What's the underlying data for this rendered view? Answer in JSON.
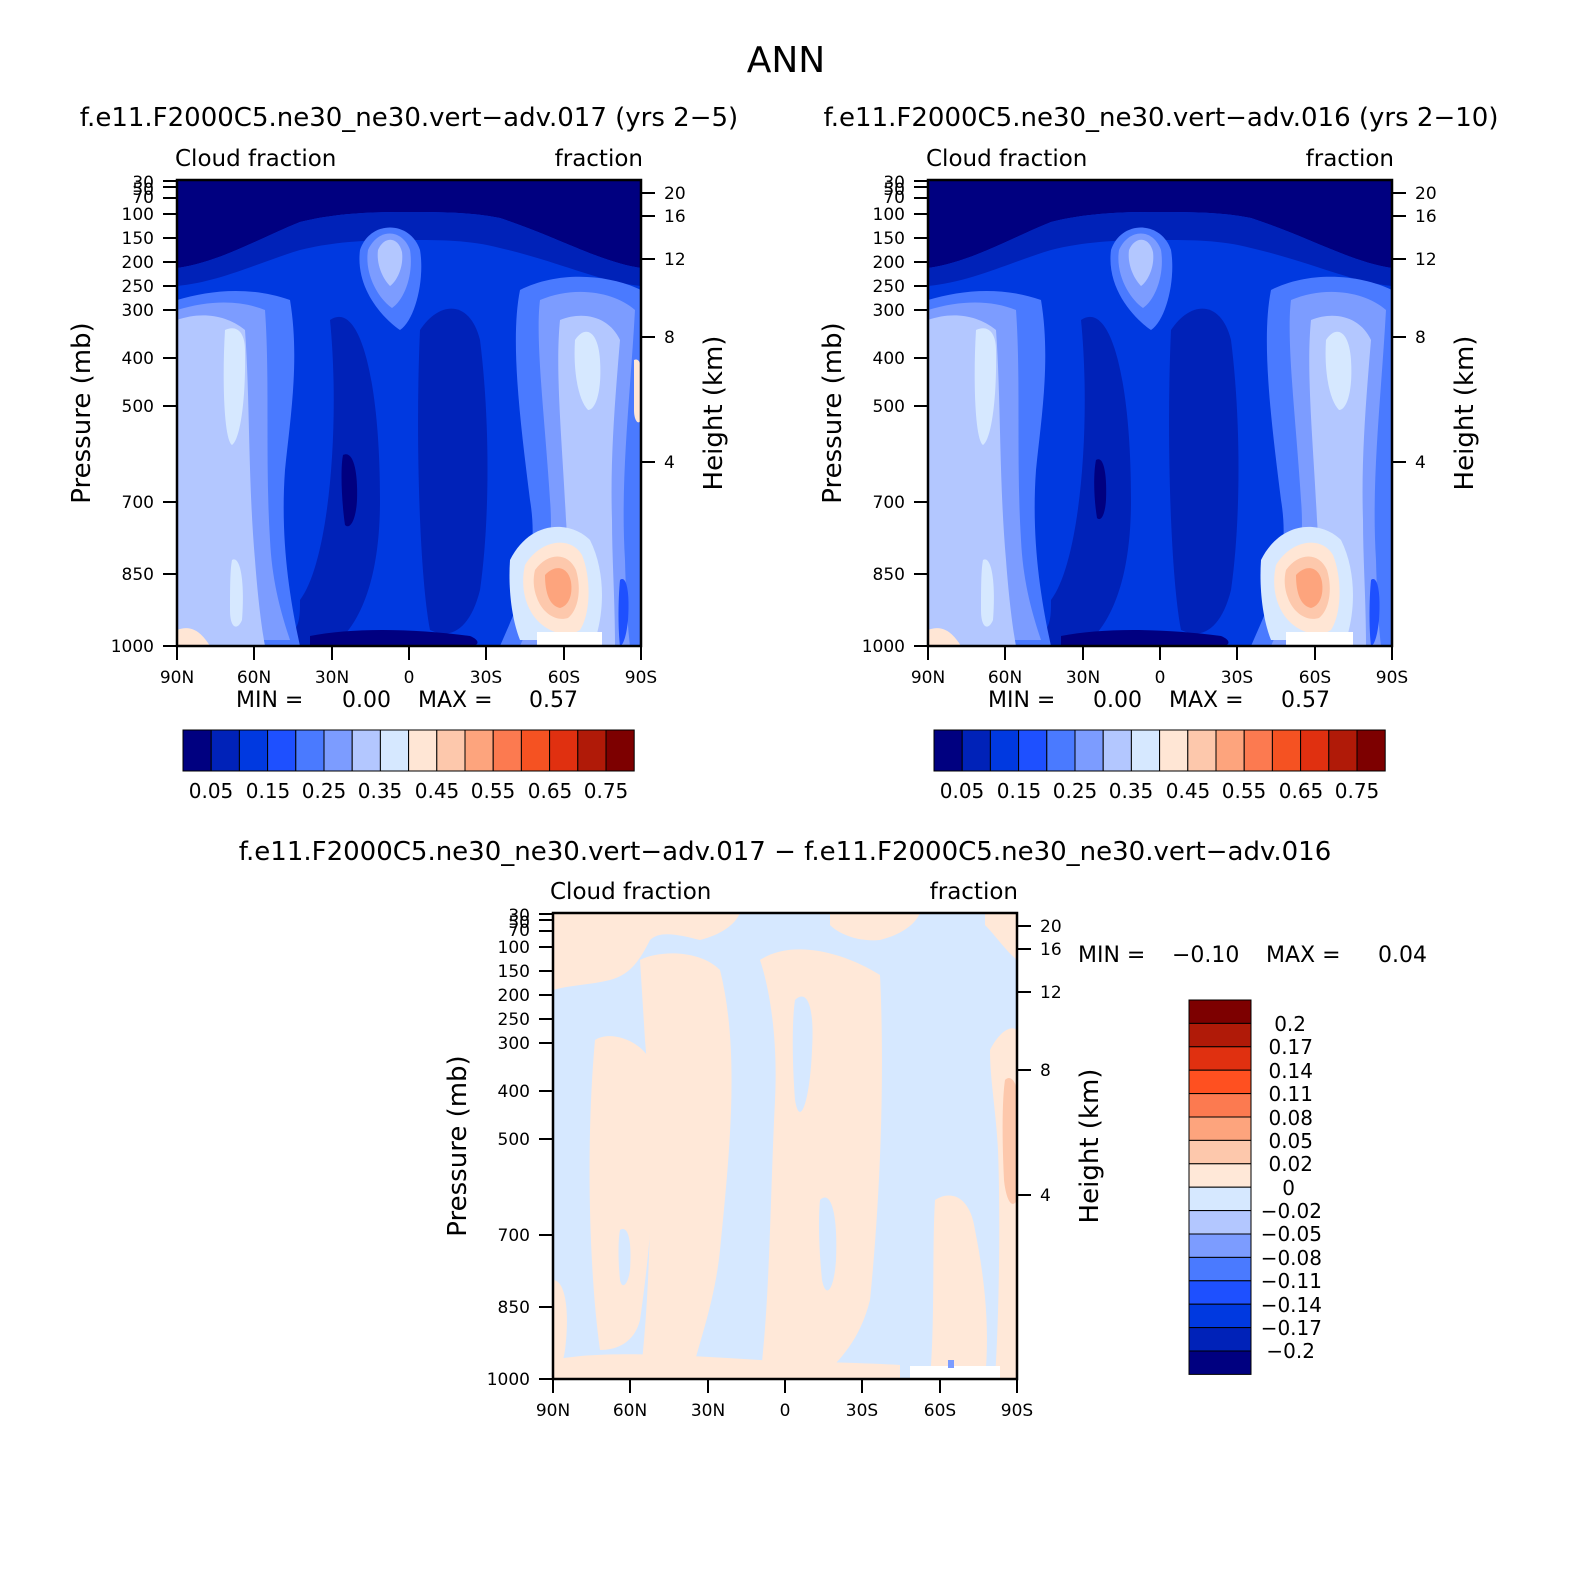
{
  "page_title": "ANN",
  "panels": [
    {
      "title": "f.e11.F2000C5.ne30_ne30.vert−adv.017 (yrs 2−5)",
      "left_label": "Cloud fraction",
      "right_label": "fraction",
      "min_text": "MIN =",
      "min_value": "0.00",
      "max_text": "MAX =",
      "max_value": "0.57",
      "xticks": [
        "90N",
        "60N",
        "30N",
        "0",
        "30S",
        "60S",
        "90S"
      ],
      "y_left_title": "Pressure (mb)",
      "y_left_ticks": [
        "30",
        "50",
        "70",
        "100",
        "150",
        "200",
        "250",
        "300",
        "400",
        "500",
        "700",
        "850",
        "1000"
      ],
      "y_right_title": "Height (km)",
      "y_right_ticks": [
        "20",
        "16",
        "12",
        "8",
        "4"
      ],
      "colorbar_labels": [
        "0.05",
        "0.15",
        "0.25",
        "0.35",
        "0.45",
        "0.55",
        "0.65",
        "0.75"
      ]
    },
    {
      "title": "f.e11.F2000C5.ne30_ne30.vert−adv.016 (yrs 2−10)",
      "left_label": "Cloud fraction",
      "right_label": "fraction",
      "min_text": "MIN =",
      "min_value": "0.00",
      "max_text": "MAX =",
      "max_value": "0.57",
      "xticks": [
        "90N",
        "60N",
        "30N",
        "0",
        "30S",
        "60S",
        "90S"
      ],
      "y_left_title": "Pressure (mb)",
      "y_left_ticks": [
        "30",
        "50",
        "70",
        "100",
        "150",
        "200",
        "250",
        "300",
        "400",
        "500",
        "700",
        "850",
        "1000"
      ],
      "y_right_title": "Height (km)",
      "y_right_ticks": [
        "20",
        "16",
        "12",
        "8",
        "4"
      ],
      "colorbar_labels": [
        "0.05",
        "0.15",
        "0.25",
        "0.35",
        "0.45",
        "0.55",
        "0.65",
        "0.75"
      ]
    },
    {
      "title": "f.e11.F2000C5.ne30_ne30.vert−adv.017 − f.e11.F2000C5.ne30_ne30.vert−adv.016",
      "left_label": "Cloud fraction",
      "right_label": "fraction",
      "min_text": "MIN =",
      "min_value": "−0.10",
      "max_text": "MAX =",
      "max_value": "0.04",
      "xticks": [
        "90N",
        "60N",
        "30N",
        "0",
        "30S",
        "60S",
        "90S"
      ],
      "y_left_title": "Pressure (mb)",
      "y_left_ticks": [
        "30",
        "50",
        "70",
        "100",
        "150",
        "200",
        "250",
        "300",
        "400",
        "500",
        "700",
        "850",
        "1000"
      ],
      "y_right_title": "Height (km)",
      "y_right_ticks": [
        "20",
        "16",
        "12",
        "8",
        "4"
      ],
      "colorbar_labels": [
        "0.2",
        "0.17",
        "0.14",
        "0.11",
        "0.08",
        "0.05",
        "0.02",
        "0",
        "−0.02",
        "−0.05",
        "−0.08",
        "−0.11",
        "−0.14",
        "−0.17",
        "−0.2"
      ]
    }
  ],
  "chart_data": [
    {
      "type": "heatmap",
      "title": "f.e11.F2000C5.ne30_ne30.vert−adv.017 (yrs 2−5)",
      "variable": "Cloud fraction",
      "units": "fraction",
      "x": [
        "90N",
        "60N",
        "30N",
        "0",
        "30S",
        "60S",
        "90S"
      ],
      "xlim": [
        90,
        -90
      ],
      "ylabel": "Pressure (mb)",
      "ylim": [
        1000,
        30
      ],
      "yscale": "log",
      "y2label": "Height (km)",
      "min": 0.0,
      "max": 0.57,
      "levels": [
        0.05,
        0.1,
        0.15,
        0.2,
        0.25,
        0.3,
        0.35,
        0.4,
        0.45,
        0.5,
        0.55,
        0.6,
        0.65,
        0.7,
        0.75
      ],
      "colors": [
        "#000080",
        "#0022b8",
        "#0039e0",
        "#1e50ff",
        "#4a7aff",
        "#7c9cff",
        "#b3c7ff",
        "#d6e8ff",
        "#ffe6d5",
        "#fdc8ac",
        "#fda47d",
        "#fc7a50",
        "#f55222",
        "#e03010",
        "#b01a08",
        "#7d0000"
      ],
      "legend": "bottom"
    },
    {
      "type": "heatmap",
      "title": "f.e11.F2000C5.ne30_ne30.vert−adv.016 (yrs 2−10)",
      "variable": "Cloud fraction",
      "units": "fraction",
      "x": [
        "90N",
        "60N",
        "30N",
        "0",
        "30S",
        "60S",
        "90S"
      ],
      "xlim": [
        90,
        -90
      ],
      "ylabel": "Pressure (mb)",
      "ylim": [
        1000,
        30
      ],
      "yscale": "log",
      "y2label": "Height (km)",
      "min": 0.0,
      "max": 0.57,
      "levels": [
        0.05,
        0.1,
        0.15,
        0.2,
        0.25,
        0.3,
        0.35,
        0.4,
        0.45,
        0.5,
        0.55,
        0.6,
        0.65,
        0.7,
        0.75
      ],
      "colors": [
        "#000080",
        "#0022b8",
        "#0039e0",
        "#1e50ff",
        "#4a7aff",
        "#7c9cff",
        "#b3c7ff",
        "#d6e8ff",
        "#ffe6d5",
        "#fdc8ac",
        "#fda47d",
        "#fc7a50",
        "#f55222",
        "#e03010",
        "#b01a08",
        "#7d0000"
      ],
      "legend": "bottom"
    },
    {
      "type": "heatmap",
      "title": "f.e11.F2000C5.ne30_ne30.vert−adv.017 − f.e11.F2000C5.ne30_ne30.vert−adv.016",
      "variable": "Cloud fraction",
      "units": "fraction",
      "x": [
        "90N",
        "60N",
        "30N",
        "0",
        "30S",
        "60S",
        "90S"
      ],
      "xlim": [
        90,
        -90
      ],
      "ylabel": "Pressure (mb)",
      "ylim": [
        1000,
        30
      ],
      "yscale": "log",
      "y2label": "Height (km)",
      "min": -0.1,
      "max": 0.04,
      "levels": [
        -0.2,
        -0.17,
        -0.14,
        -0.11,
        -0.08,
        -0.05,
        -0.02,
        0,
        0.02,
        0.05,
        0.08,
        0.11,
        0.14,
        0.17,
        0.2
      ],
      "colors": [
        "#7d0000",
        "#b01a08",
        "#e03010",
        "#ff5020",
        "#fc7a50",
        "#fda47d",
        "#fdc8ac",
        "#ffe8d8",
        "#d6e8ff",
        "#b3c7ff",
        "#7c9cff",
        "#4a7aff",
        "#1e50ff",
        "#0039e0",
        "#0022b8",
        "#000080"
      ],
      "legend": "right"
    }
  ]
}
